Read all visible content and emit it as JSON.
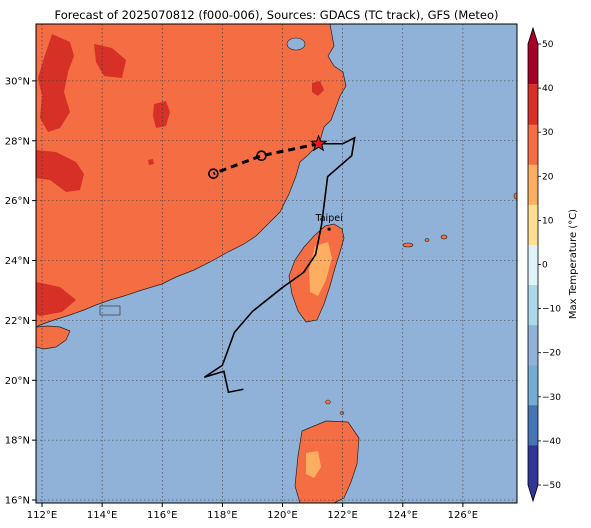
{
  "title": "Forecast of 2025070812 (f000-006), Sources: GDACS (TC track), GFS (Meteo)",
  "map": {
    "lon_range": [
      111.8,
      127.8
    ],
    "lat_range": [
      15.9,
      31.9
    ],
    "lon_ticks": [
      "112°E",
      "114°E",
      "116°E",
      "118°E",
      "120°E",
      "122°E",
      "124°E",
      "126°E"
    ],
    "lon_tick_values": [
      112,
      114,
      116,
      118,
      120,
      122,
      124,
      126
    ],
    "lat_ticks": [
      "16°N",
      "18°N",
      "20°N",
      "22°N",
      "24°N",
      "26°N",
      "28°N",
      "30°N"
    ],
    "lat_tick_values": [
      16,
      18,
      20,
      22,
      24,
      26,
      28,
      30
    ],
    "gridlines": true,
    "ocean_color": "#91b2d8",
    "land_color": "#f46d43",
    "hot_color": "#d73027",
    "warm_color": "#fdae61"
  },
  "cities": [
    {
      "name": "Taipei",
      "lon": 121.55,
      "lat": 25.05
    }
  ],
  "tc_track": {
    "past": [
      [
        118.7,
        19.7
      ],
      [
        118.2,
        19.6
      ],
      [
        118.05,
        20.3
      ],
      [
        117.4,
        20.1
      ],
      [
        118.0,
        20.5
      ],
      [
        118.4,
        21.6
      ],
      [
        119.0,
        22.3
      ],
      [
        120.0,
        23.1
      ],
      [
        120.7,
        23.6
      ],
      [
        121.1,
        24.2
      ],
      [
        121.3,
        25.2
      ],
      [
        121.5,
        26.8
      ],
      [
        122.3,
        27.5
      ],
      [
        122.4,
        28.1
      ],
      [
        122.0,
        27.9
      ],
      [
        121.2,
        27.9
      ]
    ],
    "forecast": [
      [
        121.2,
        27.9
      ],
      [
        119.3,
        27.5
      ],
      [
        117.7,
        26.9
      ]
    ],
    "current": [
      121.2,
      27.9
    ],
    "forecast_points": [
      [
        119.3,
        27.5
      ],
      [
        117.7,
        26.9
      ]
    ]
  },
  "colorbar": {
    "label": "Max Temperature (°C)",
    "ticks": [
      "50",
      "40",
      "30",
      "20",
      "10",
      "0",
      "−10",
      "−20",
      "−30",
      "−40",
      "−50"
    ],
    "tick_values": [
      50,
      40,
      30,
      20,
      10,
      0,
      -10,
      -20,
      -30,
      -40,
      -50
    ],
    "colors": [
      "#313695",
      "#4575b4",
      "#74add1",
      "#91b2d8",
      "#abd9e9",
      "#e0f3f8",
      "#fee090",
      "#fdae61",
      "#f46d43",
      "#d73027",
      "#a50026"
    ]
  }
}
